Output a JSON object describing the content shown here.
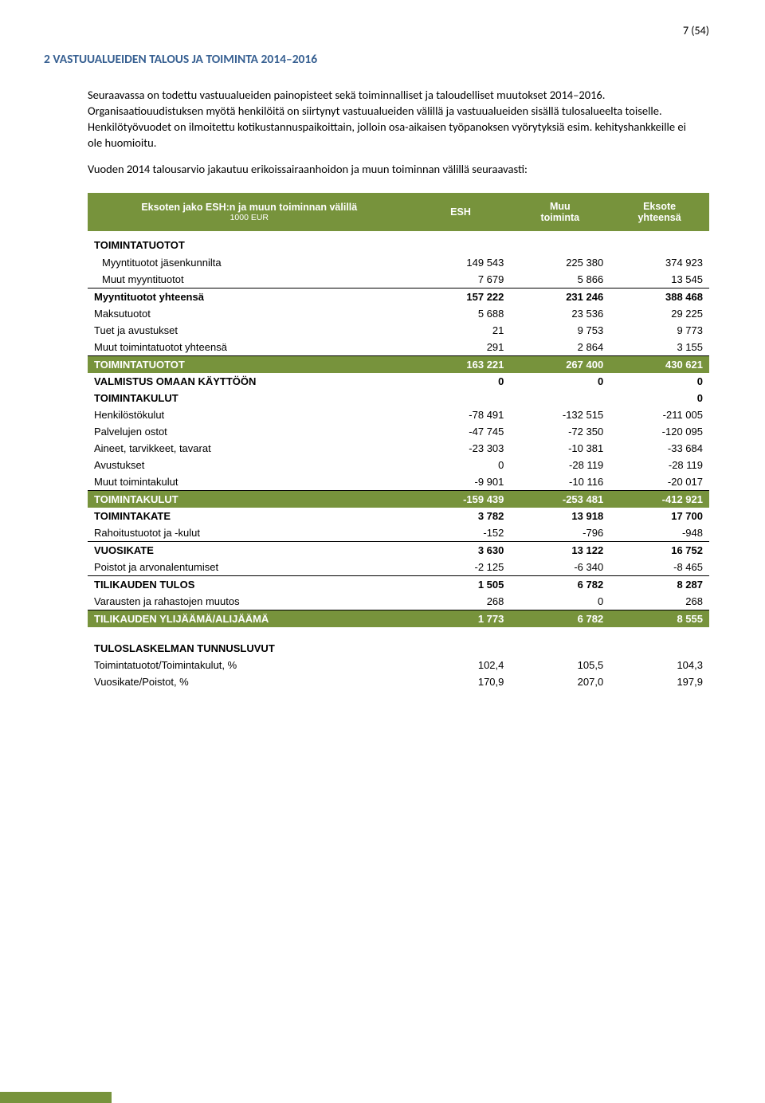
{
  "page_number": "7 (54)",
  "section_heading": "2   VASTUUALUEIDEN TALOUS JA TOIMINTA 2014–2016",
  "para1": "Seuraavassa on todettu vastuualueiden painopisteet sekä toiminnalliset ja taloudelliset muutokset 2014–2016. Organisaatiouudistuksen myötä henkilöitä on siirtynyt vastuualueiden välillä ja vastuualueiden sisällä tulosalueelta toiselle. Henkilötyövuodet on ilmoitettu kotikustannuspaikoittain, jolloin osa-aikaisen työpanoksen vyörytyksiä esim. kehityshankkeille ei ole huomioitu.",
  "para2": "Vuoden 2014 talousarvio jakautuu erikoissairaanhoidon ja muun toiminnan välillä seuraavasti:",
  "table": {
    "header": {
      "title": "Eksoten jako ESH:n ja muun toiminnan välillä",
      "unit": "1000 EUR",
      "col_esh": "ESH",
      "col_muu_l1": "Muu",
      "col_muu_l2": "toiminta",
      "col_eksote_l1": "Eksote",
      "col_eksote_l2": "yhteensä"
    },
    "section_toimintatuotot": "TOIMINTATUOTOT",
    "rows_income": [
      {
        "label": "Myyntituotot jäsenkunnilta",
        "esh": "149 543",
        "muu": "225 380",
        "tot": "374 923",
        "indent": true
      },
      {
        "label": "Muut myyntituotot",
        "esh": "7 679",
        "muu": "5 866",
        "tot": "13 545",
        "indent": true,
        "underline": true
      },
      {
        "label": "Myyntituotot yhteensä",
        "esh": "157 222",
        "muu": "231 246",
        "tot": "388 468",
        "bold": true
      },
      {
        "label": "Maksutuotot",
        "esh": "5 688",
        "muu": "23 536",
        "tot": "29 225"
      },
      {
        "label": "Tuet ja avustukset",
        "esh": "21",
        "muu": "9 753",
        "tot": "9 773"
      },
      {
        "label": "Muut toimintatuotot yhteensä",
        "esh": "291",
        "muu": "2 864",
        "tot": "3 155",
        "underline": true
      }
    ],
    "income_total": {
      "label": "TOIMINTATUOTOT",
      "esh": "163 221",
      "muu": "267 400",
      "tot": "430 621"
    },
    "rows_mid": [
      {
        "label": "VALMISTUS OMAAN KÄYTTÖÖN",
        "esh": "0",
        "muu": "0",
        "tot": "0",
        "bold": true
      },
      {
        "label": "TOIMINTAKULUT",
        "esh": "",
        "muu": "",
        "tot": "0",
        "bold": true
      },
      {
        "label": "Henkilöstökulut",
        "esh": "-78 491",
        "muu": "-132 515",
        "tot": "-211 005"
      },
      {
        "label": "Palvelujen ostot",
        "esh": "-47 745",
        "muu": "-72 350",
        "tot": "-120 095"
      },
      {
        "label": "Aineet, tarvikkeet, tavarat",
        "esh": "-23 303",
        "muu": "-10 381",
        "tot": "-33 684"
      },
      {
        "label": "Avustukset",
        "esh": "0",
        "muu": "-28 119",
        "tot": "-28 119"
      },
      {
        "label": "Muut toimintakulut",
        "esh": "-9 901",
        "muu": "-10 116",
        "tot": "-20 017",
        "underline": true
      }
    ],
    "expense_total": {
      "label": "TOIMINTAKULUT",
      "esh": "-159 439",
      "muu": "-253 481",
      "tot": "-412 921"
    },
    "rows_bottom": [
      {
        "label": "TOIMINTAKATE",
        "esh": "3 782",
        "muu": "13 918",
        "tot": "17 700",
        "bold": true
      },
      {
        "label": "Rahoitustuotot ja -kulut",
        "esh": "-152",
        "muu": "-796",
        "tot": "-948",
        "underline": true
      },
      {
        "label": "VUOSIKATE",
        "esh": "3 630",
        "muu": "13 122",
        "tot": "16 752",
        "bold": true
      },
      {
        "label": "Poistot ja arvonalentumiset",
        "esh": "-2 125",
        "muu": "-6 340",
        "tot": "-8 465",
        "underline": true
      },
      {
        "label": "TILIKAUDEN TULOS",
        "esh": "1 505",
        "muu": "6 782",
        "tot": "8 287",
        "bold": true
      },
      {
        "label": "Varausten  ja rahastojen muutos",
        "esh": "268",
        "muu": "0",
        "tot": "268",
        "underline": true
      }
    ],
    "final_total": {
      "label": "TILIKAUDEN YLIJÄÄMÄ/ALIJÄÄMÄ",
      "esh": "1 773",
      "muu": "6 782",
      "tot": "8 555"
    },
    "ratios_heading": "TULOSLASKELMAN TUNNUSLUVUT",
    "ratios": [
      {
        "label": "Toimintatuotot/Toimintakulut, %",
        "esh": "102,4",
        "muu": "105,5",
        "tot": "104,3"
      },
      {
        "label": "Vuosikate/Poistot, %",
        "esh": "170,9",
        "muu": "207,0",
        "tot": "197,9"
      }
    ]
  },
  "colors": {
    "heading_blue": "#365f91",
    "table_green": "#77933c"
  }
}
